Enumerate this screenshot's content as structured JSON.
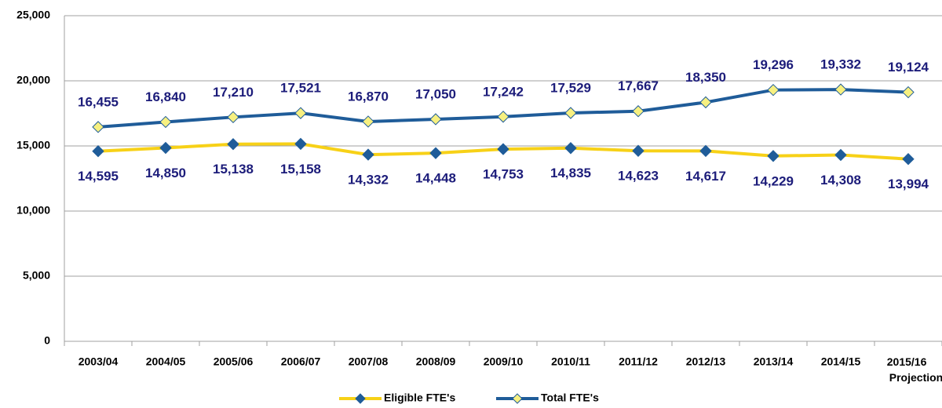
{
  "chart_data": {
    "type": "line",
    "categories": [
      "2003/04",
      "2004/05",
      "2005/06",
      "2006/07",
      "2007/08",
      "2008/09",
      "2009/10",
      "2010/11",
      "2011/12",
      "2012/13",
      "2013/14",
      "2014/15",
      "2015/16 Projection"
    ],
    "series": [
      {
        "name": "Eligible FTE's",
        "color": "#f7d117",
        "marker_color": "#1f5c99",
        "values": [
          14595,
          14850,
          15138,
          15158,
          14332,
          14448,
          14753,
          14835,
          14623,
          14617,
          14229,
          14308,
          13994
        ],
        "value_labels": [
          "14,595",
          "14,850",
          "15,138",
          "15,158",
          "14,332",
          "14,448",
          "14,753",
          "14,835",
          "14,623",
          "14,617",
          "14,229",
          "14,308",
          "13,994"
        ]
      },
      {
        "name": "Total FTE's",
        "color": "#1f5c99",
        "marker_color": "#f7f080",
        "values": [
          16455,
          16840,
          17210,
          17521,
          16870,
          17050,
          17242,
          17529,
          17667,
          18350,
          19296,
          19332,
          19124
        ],
        "value_labels": [
          "16,455",
          "16,840",
          "17,210",
          "17,521",
          "16,870",
          "17,050",
          "17,242",
          "17,529",
          "17,667",
          "18,350",
          "19,296",
          "19,332",
          "19,124"
        ]
      }
    ],
    "ylim": [
      0,
      25000
    ],
    "yticks": [
      0,
      {
        "value": 5000,
        "label": "5,000"
      },
      {
        "value": 10000,
        "label": "10,000"
      },
      {
        "value": 15000,
        "label": "15,000"
      },
      {
        "value": 20000,
        "label": "20,000"
      },
      {
        "value": 25000,
        "label": "25,000"
      }
    ],
    "grid": true,
    "legend": "bottom"
  }
}
